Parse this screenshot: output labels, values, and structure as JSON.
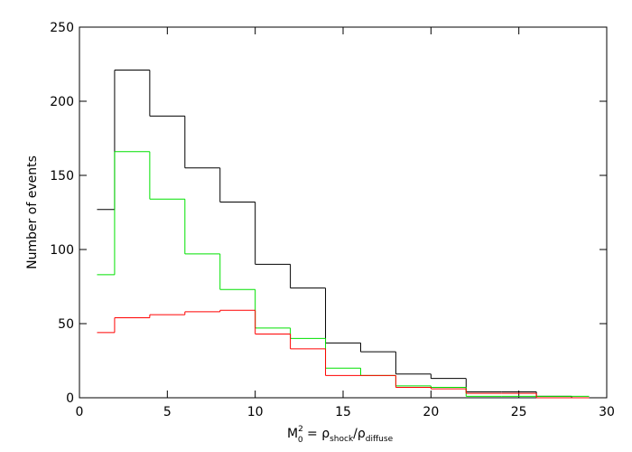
{
  "chart_data": {
    "type": "histogram",
    "ylabel": "Number of events",
    "xlabel_parts": [
      "M",
      "2",
      "0",
      " = ρ",
      "shock",
      "/ρ",
      "diffuse"
    ],
    "bins": [
      1,
      2,
      4,
      6,
      8,
      10,
      12,
      14,
      16,
      18,
      20,
      22,
      24,
      26,
      28,
      29
    ],
    "series": [
      {
        "color": "#000000",
        "values": [
          127,
          221,
          190,
          155,
          132,
          90,
          74,
          37,
          31,
          16,
          13,
          4,
          4,
          1,
          0
        ]
      },
      {
        "color": "#00e000",
        "values": [
          83,
          166,
          134,
          97,
          73,
          47,
          40,
          20,
          15,
          8,
          7,
          1,
          1,
          1,
          1
        ]
      },
      {
        "color": "#ff0000",
        "values": [
          44,
          54,
          56,
          58,
          59,
          43,
          33,
          15,
          15,
          7,
          6,
          3,
          3,
          0,
          0
        ]
      }
    ],
    "xlim": [
      0,
      30
    ],
    "xticks": [
      0,
      5,
      10,
      15,
      20,
      25,
      30
    ],
    "ylim": [
      0,
      250
    ],
    "yticks": [
      0,
      50,
      100,
      150,
      200,
      250
    ]
  }
}
